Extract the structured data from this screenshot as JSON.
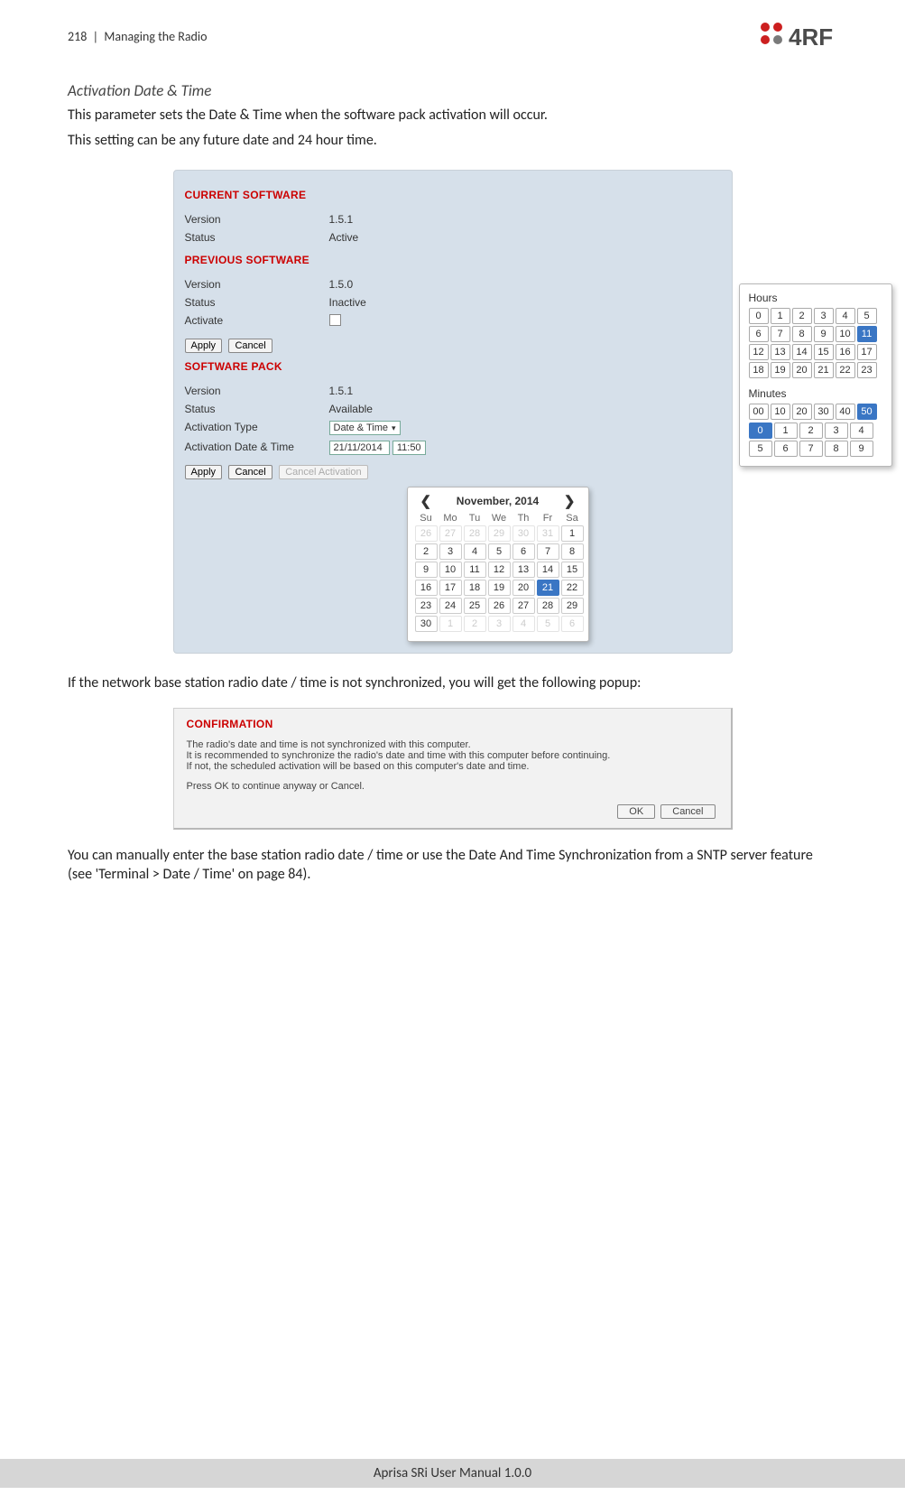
{
  "header": {
    "page_number": "218",
    "section": "Managing the Radio",
    "logo": {
      "brand": "4RF",
      "red": "#cc1f1f",
      "gray": "#7a7a7a"
    }
  },
  "title": "Activation Date & Time",
  "para1": "This parameter sets the Date & Time when the software pack activation will occur.",
  "para2": "This setting can be any future date and 24 hour time.",
  "panel": {
    "colors": {
      "bg": "#d6e0ea",
      "heading": "#cc0000",
      "text": "#333333"
    },
    "current": {
      "heading": "CURRENT SOFTWARE",
      "version_label": "Version",
      "version_value": "1.5.1",
      "status_label": "Status",
      "status_value": "Active"
    },
    "previous": {
      "heading": "PREVIOUS SOFTWARE",
      "version_label": "Version",
      "version_value": "1.5.0",
      "status_label": "Status",
      "status_value": "Inactive",
      "activate_label": "Activate"
    },
    "buttons": {
      "apply": "Apply",
      "cancel": "Cancel",
      "cancel_activation": "Cancel Activation"
    },
    "pack": {
      "heading": "SOFTWARE PACK",
      "version_label": "Version",
      "version_value": "1.5.1",
      "status_label": "Status",
      "status_value": "Available",
      "type_label": "Activation Type",
      "type_value": "Date & Time",
      "datetime_label": "Activation Date & Time",
      "date_value": "21/11/2014",
      "time_value": "11:50"
    }
  },
  "time_picker": {
    "hours_label": "Hours",
    "hours": [
      "0",
      "1",
      "2",
      "3",
      "4",
      "5",
      "6",
      "7",
      "8",
      "9",
      "10",
      "11",
      "12",
      "13",
      "14",
      "15",
      "16",
      "17",
      "18",
      "19",
      "20",
      "21",
      "22",
      "23"
    ],
    "hours_selected": "11",
    "minutes_label": "Minutes",
    "minutes_tens": [
      "00",
      "10",
      "20",
      "30",
      "40",
      "50"
    ],
    "minutes_tens_selected": "50",
    "minutes_ones_r1": [
      "0",
      "1",
      "2",
      "3",
      "4"
    ],
    "minutes_ones_r2": [
      "5",
      "6",
      "7",
      "8",
      "9"
    ],
    "minutes_ones_selected": "0"
  },
  "calendar": {
    "title": "November, 2014",
    "dow": [
      "Su",
      "Mo",
      "Tu",
      "We",
      "Th",
      "Fr",
      "Sa"
    ],
    "prev_trail": [
      "26",
      "27",
      "28",
      "29",
      "30",
      "31"
    ],
    "days": [
      "1",
      "2",
      "3",
      "4",
      "5",
      "6",
      "7",
      "8",
      "9",
      "10",
      "11",
      "12",
      "13",
      "14",
      "15",
      "16",
      "17",
      "18",
      "19",
      "20",
      "21",
      "22",
      "23",
      "24",
      "25",
      "26",
      "27",
      "28",
      "29",
      "30"
    ],
    "next_trail": [
      "1",
      "2",
      "3",
      "4",
      "5",
      "6"
    ],
    "selected": "21"
  },
  "para3": "If the network base station radio date / time is not synchronized, you will get the following popup:",
  "confirmation": {
    "title": "CONFIRMATION",
    "line1": "The radio's date and time is not synchronized with this computer.",
    "line2": "It is recommended to synchronize the radio's date and time with this computer before continuing.",
    "line3": "If not, the scheduled activation will be based on this computer's date and time.",
    "line4": "Press OK to continue anyway or Cancel.",
    "ok": "OK",
    "cancel": "Cancel"
  },
  "para4": "You can manually enter the base station radio date / time or use the Date And Time Synchronization from a SNTP server feature (see 'Terminal > Date / Time' on page 84).",
  "footer": "Aprisa SRi User Manual 1.0.0"
}
